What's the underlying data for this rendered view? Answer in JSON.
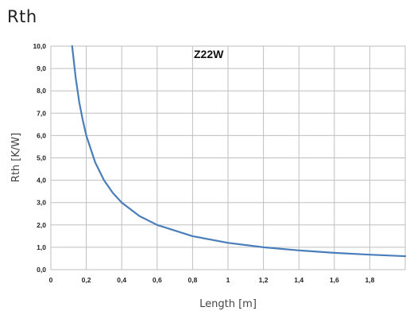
{
  "title": "Rth",
  "chart_data": {
    "type": "line",
    "title": "Rth",
    "annotation": "Z22W",
    "xlabel": "Length [m]",
    "ylabel": "Rth [K/W]",
    "xlim": [
      0,
      2.0
    ],
    "ylim": [
      0,
      10
    ],
    "x_ticks": [
      0,
      0.2,
      0.4,
      0.6,
      0.8,
      1,
      1.2,
      1.4,
      1.6,
      1.8
    ],
    "x_tick_labels": [
      "0",
      "0,2",
      "0,4",
      "0,6",
      "0,8",
      "1",
      "1,2",
      "1,4",
      "1,6",
      "1,8"
    ],
    "y_ticks": [
      0,
      1,
      2,
      3,
      4,
      5,
      6,
      7,
      8,
      9,
      10
    ],
    "y_tick_labels": [
      "0,0",
      "1,0",
      "2,0",
      "3,0",
      "4,0",
      "5,0",
      "6,0",
      "7,0",
      "8,0",
      "9,0",
      "10,0"
    ],
    "grid": true,
    "legend": "none",
    "series": [
      {
        "color": "#4a7ebb",
        "x": [
          0.12,
          0.14,
          0.16,
          0.18,
          0.2,
          0.25,
          0.3,
          0.35,
          0.4,
          0.5,
          0.6,
          0.8,
          1.0,
          1.2,
          1.4,
          1.6,
          1.8,
          2.0
        ],
        "y": [
          10.0,
          8.6,
          7.5,
          6.7,
          6.0,
          4.8,
          4.0,
          3.43,
          3.0,
          2.4,
          2.0,
          1.5,
          1.2,
          1.0,
          0.86,
          0.75,
          0.67,
          0.6
        ]
      }
    ]
  }
}
